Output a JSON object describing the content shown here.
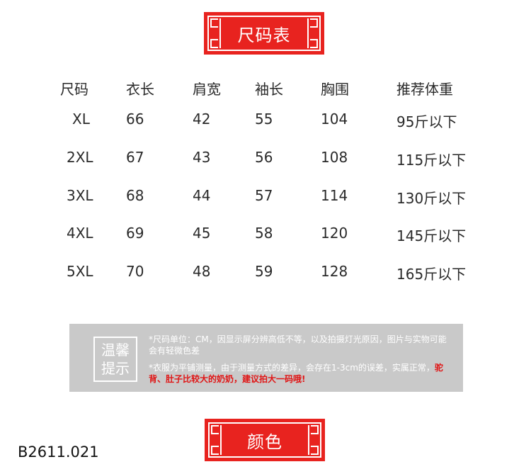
{
  "title_banner": "尺码表",
  "table": {
    "headers": [
      "尺码",
      "衣长",
      "肩宽",
      "袖长",
      "胸围",
      "推荐体重"
    ],
    "rows": [
      [
        "XL",
        "66",
        "42",
        "55",
        "104",
        "95斤以下"
      ],
      [
        "2XL",
        "67",
        "43",
        "56",
        "108",
        "115斤以下"
      ],
      [
        "3XL",
        "68",
        "44",
        "57",
        "114",
        "130斤以下"
      ],
      [
        "4XL",
        "69",
        "45",
        "58",
        "120",
        "145斤以下"
      ],
      [
        "5XL",
        "70",
        "48",
        "59",
        "128",
        "165斤以下"
      ]
    ]
  },
  "notice": {
    "label_line1": "温馨",
    "label_line2": "提示",
    "note1": "*尺码单位：CM，因显示屏分辨高低不等，以及拍摄灯光原因，图片与实物可能会有轻微色差",
    "note2_plain": "*衣服为平铺测量，由于测量方式的差异，会存在1-3cm的误差，实属正常，",
    "note2_highlight": "驼背、肚子比较大的奶奶，建议拍大一码哦!",
    "highlight_color": "#e01515"
  },
  "color_banner": "颜色",
  "product_code": "B2611.021",
  "accent_color": "#e8231f"
}
